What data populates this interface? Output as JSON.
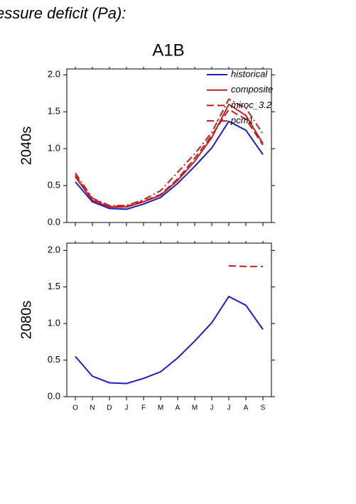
{
  "header": {
    "text": "essure deficit (Pa):",
    "scenario": "A1B"
  },
  "chart_data": [
    {
      "type": "line",
      "ylabel": "2040s",
      "ylim": [
        0,
        2.08
      ],
      "yticks": [
        {
          "value": 0,
          "label": "0.0"
        },
        {
          "value": 0.5,
          "label": "0.5"
        },
        {
          "value": 1,
          "label": "1.0"
        },
        {
          "value": 1.5,
          "label": "1.5"
        },
        {
          "value": 2,
          "label": "2.0"
        }
      ],
      "legend": "upper right",
      "series": [
        {
          "name": "historical",
          "color": "#1f1fbf",
          "dash": "solid",
          "values": [
            0.55,
            0.28,
            0.19,
            0.18,
            0.25,
            0.34,
            0.53,
            0.76,
            1.01,
            1.37,
            1.25,
            0.92
          ]
        },
        {
          "name": "composite",
          "color": "#bf1f1f",
          "dash": "solid",
          "values": [
            0.62,
            0.3,
            0.21,
            0.21,
            0.28,
            0.37,
            0.57,
            0.83,
            1.15,
            1.6,
            1.45,
            1.07
          ]
        },
        {
          "name": "miroc_3.2",
          "color": "#bf1f1f",
          "dash": "dash",
          "values": [
            0.64,
            0.32,
            0.22,
            0.22,
            0.29,
            0.38,
            0.59,
            0.87,
            1.18,
            1.53,
            1.4,
            1.05
          ]
        },
        {
          "name": "pcm1",
          "color": "#bf1f1f",
          "dash": "dashdot",
          "values": [
            0.67,
            0.33,
            0.23,
            0.23,
            0.31,
            0.43,
            0.68,
            0.93,
            1.22,
            1.67,
            1.55,
            1.2
          ]
        }
      ]
    },
    {
      "type": "line",
      "ylabel": "2080s",
      "ylim": [
        0,
        2.1
      ],
      "yticks": [
        {
          "value": 0,
          "label": "0.0"
        },
        {
          "value": 0.5,
          "label": "0.5"
        },
        {
          "value": 1,
          "label": "1.0"
        },
        {
          "value": 1.5,
          "label": "1.5"
        },
        {
          "value": 2,
          "label": "2.0"
        }
      ],
      "categories": [
        "O",
        "N",
        "D",
        "J",
        "F",
        "M",
        "A",
        "M",
        "J",
        "J",
        "A",
        "S"
      ],
      "series": [
        {
          "color": "#1f1fbf",
          "dash": "solid",
          "values": [
            0.55,
            0.28,
            0.19,
            0.18,
            0.25,
            0.34,
            0.53,
            0.76,
            1.01,
            1.37,
            1.25,
            0.92
          ]
        },
        {
          "color": "#bf1f1f",
          "dash": "dash",
          "values": [
            null,
            null,
            null,
            null,
            null,
            null,
            null,
            null,
            null,
            1.79,
            1.78,
            1.78
          ]
        }
      ]
    }
  ]
}
